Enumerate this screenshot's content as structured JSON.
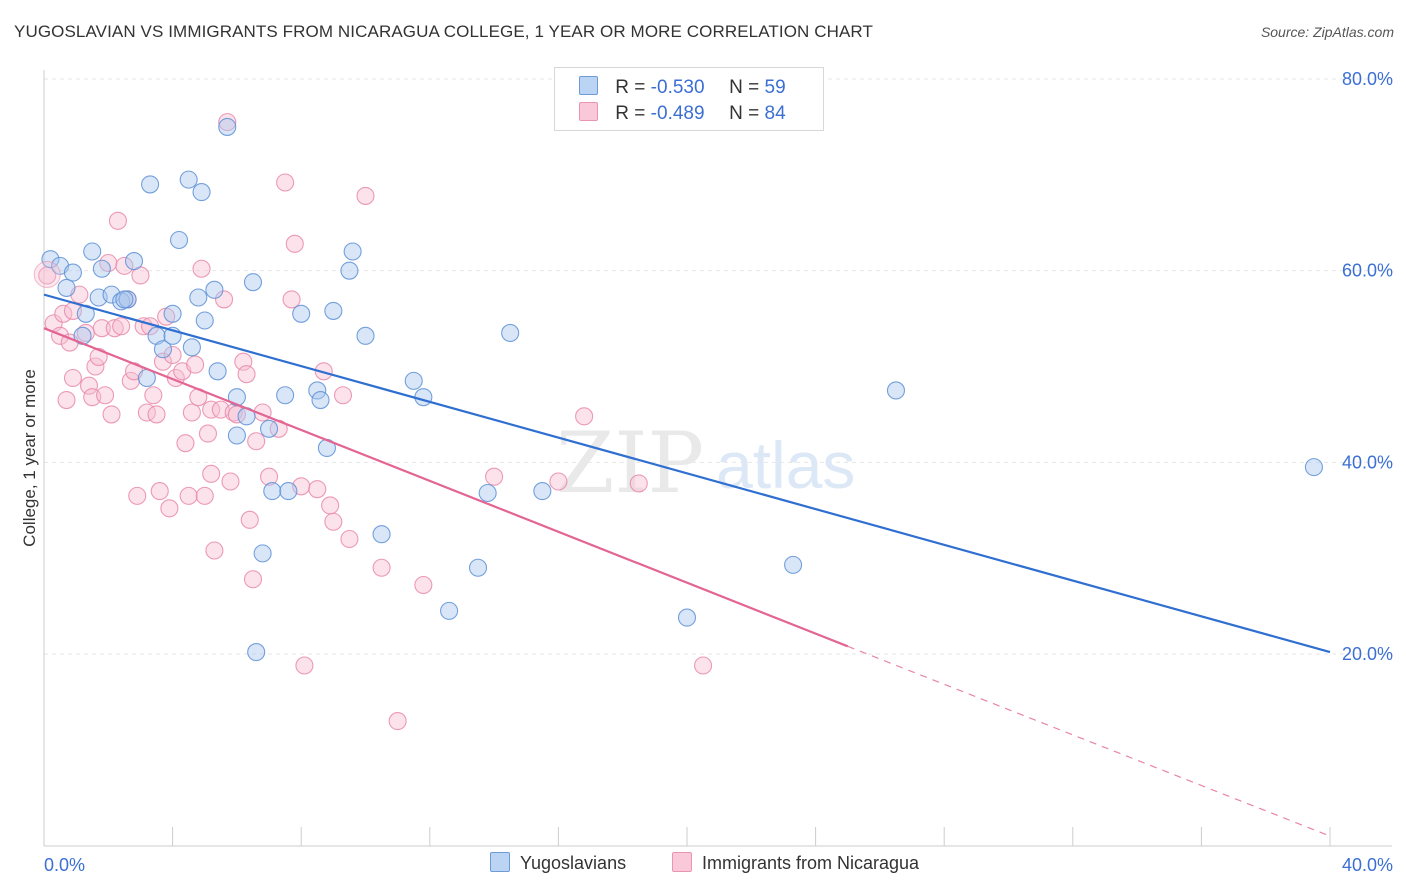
{
  "title": "YUGOSLAVIAN VS IMMIGRANTS FROM NICARAGUA COLLEGE, 1 YEAR OR MORE CORRELATION CHART",
  "source": "Source: ZipAtlas.com",
  "watermark": {
    "zip": "ZIP",
    "atlas": "atlas"
  },
  "legend": {
    "r_label": "R =",
    "n_label": "N =",
    "items": [
      {
        "r": "-0.530",
        "n": "59"
      },
      {
        "r": "-0.489",
        "n": "84"
      }
    ]
  },
  "colors": {
    "blue_fill": "#a9c8f0",
    "blue_stroke": "#5e90d6",
    "blue_line": "#2f6fd1",
    "pink_fill": "#f7bfd2",
    "pink_stroke": "#e98aaa",
    "pink_line": "#e36593",
    "tick_label": "#3b6fd4",
    "grid": "#e6e6e6"
  },
  "chart_data": {
    "type": "scatter",
    "title": "YUGOSLAVIAN VS IMMIGRANTS FROM NICARAGUA COLLEGE, 1 YEAR OR MORE CORRELATION CHART",
    "xlabel": "",
    "ylabel": "College, 1 year or more",
    "xlim": [
      0,
      40
    ],
    "ylim": [
      2.5,
      83
    ],
    "x_tick_labels": [
      {
        "value": 0,
        "label": "0.0%"
      },
      {
        "value": 40,
        "label": "40.0%"
      }
    ],
    "y_tick_labels": [
      {
        "value": 20,
        "label": "20.0%"
      },
      {
        "value": 40,
        "label": "40.0%"
      },
      {
        "value": 60,
        "label": "60.0%"
      },
      {
        "value": 80,
        "label": "80.0%"
      }
    ],
    "grid": true,
    "legend_position": "top-center",
    "series": [
      {
        "name": "Yugoslavians",
        "color": "#a9c8f0",
        "r": -0.53,
        "n": 59,
        "trend": {
          "x": [
            0,
            40
          ],
          "y": [
            57.5,
            20.2
          ]
        },
        "points": [
          [
            0.2,
            61.2
          ],
          [
            0.5,
            60.5
          ],
          [
            0.9,
            59.8
          ],
          [
            0.7,
            58.2
          ],
          [
            1.3,
            55.5
          ],
          [
            1.2,
            53.2
          ],
          [
            1.5,
            62.0
          ],
          [
            1.8,
            60.2
          ],
          [
            1.7,
            57.2
          ],
          [
            2.1,
            57.5
          ],
          [
            2.4,
            56.8
          ],
          [
            2.6,
            57.0
          ],
          [
            2.8,
            61.0
          ],
          [
            3.2,
            48.8
          ],
          [
            3.3,
            69.0
          ],
          [
            3.5,
            53.2
          ],
          [
            3.7,
            51.8
          ],
          [
            4.0,
            53.2
          ],
          [
            4.0,
            55.5
          ],
          [
            4.2,
            63.2
          ],
          [
            4.5,
            69.5
          ],
          [
            4.8,
            57.2
          ],
          [
            4.9,
            68.2
          ],
          [
            5.0,
            54.8
          ],
          [
            5.3,
            58.0
          ],
          [
            5.4,
            49.5
          ],
          [
            5.7,
            75.0
          ],
          [
            6.0,
            46.8
          ],
          [
            6.0,
            42.8
          ],
          [
            6.3,
            44.8
          ],
          [
            6.5,
            58.8
          ],
          [
            6.6,
            20.2
          ],
          [
            6.8,
            30.5
          ],
          [
            7.0,
            43.5
          ],
          [
            7.1,
            37.0
          ],
          [
            7.5,
            47.0
          ],
          [
            7.6,
            37.0
          ],
          [
            8.0,
            55.5
          ],
          [
            8.5,
            47.5
          ],
          [
            8.6,
            46.5
          ],
          [
            8.8,
            41.5
          ],
          [
            9.0,
            55.8
          ],
          [
            9.5,
            60.0
          ],
          [
            9.6,
            62.0
          ],
          [
            10.0,
            53.2
          ],
          [
            10.5,
            32.5
          ],
          [
            11.5,
            48.5
          ],
          [
            11.8,
            46.8
          ],
          [
            12.6,
            24.5
          ],
          [
            13.5,
            29.0
          ],
          [
            13.8,
            36.8
          ],
          [
            14.5,
            53.5
          ],
          [
            15.5,
            37.0
          ],
          [
            20.0,
            23.8
          ],
          [
            23.3,
            29.3
          ],
          [
            26.5,
            47.5
          ],
          [
            39.5,
            39.5
          ],
          [
            2.5,
            57.0
          ],
          [
            4.6,
            52.0
          ]
        ]
      },
      {
        "name": "Immigrants from Nicaragua",
        "color": "#f7bfd2",
        "r": -0.489,
        "n": 84,
        "trend": {
          "x": [
            0,
            25
          ],
          "y": [
            54.0,
            20.8
          ]
        },
        "trend_dashed": {
          "x": [
            25,
            40
          ],
          "y": [
            20.8,
            1.0
          ]
        },
        "points": [
          [
            0.1,
            59.5
          ],
          [
            0.3,
            54.5
          ],
          [
            0.5,
            53.2
          ],
          [
            0.6,
            55.5
          ],
          [
            0.7,
            46.5
          ],
          [
            0.8,
            52.5
          ],
          [
            0.9,
            55.8
          ],
          [
            0.9,
            48.8
          ],
          [
            1.1,
            57.5
          ],
          [
            1.3,
            53.5
          ],
          [
            1.4,
            48.0
          ],
          [
            1.5,
            46.8
          ],
          [
            1.6,
            50.0
          ],
          [
            1.7,
            51.0
          ],
          [
            1.8,
            54.0
          ],
          [
            1.9,
            47.0
          ],
          [
            2.0,
            60.8
          ],
          [
            2.1,
            45.0
          ],
          [
            2.2,
            54.0
          ],
          [
            2.3,
            65.2
          ],
          [
            2.4,
            54.2
          ],
          [
            2.5,
            60.5
          ],
          [
            2.6,
            57.0
          ],
          [
            2.7,
            48.5
          ],
          [
            2.8,
            49.5
          ],
          [
            2.9,
            36.5
          ],
          [
            3.0,
            59.5
          ],
          [
            3.1,
            54.2
          ],
          [
            3.2,
            45.2
          ],
          [
            3.3,
            54.2
          ],
          [
            3.5,
            45.0
          ],
          [
            3.6,
            37.0
          ],
          [
            3.7,
            50.5
          ],
          [
            3.8,
            55.2
          ],
          [
            3.9,
            35.2
          ],
          [
            4.0,
            51.2
          ],
          [
            4.1,
            48.8
          ],
          [
            4.3,
            49.5
          ],
          [
            4.4,
            42.0
          ],
          [
            4.5,
            36.5
          ],
          [
            4.6,
            45.2
          ],
          [
            4.7,
            50.2
          ],
          [
            4.8,
            46.8
          ],
          [
            4.9,
            60.2
          ],
          [
            5.0,
            36.5
          ],
          [
            5.1,
            43.0
          ],
          [
            5.2,
            45.5
          ],
          [
            5.3,
            30.8
          ],
          [
            5.5,
            45.5
          ],
          [
            5.6,
            57.0
          ],
          [
            5.7,
            75.5
          ],
          [
            5.8,
            38.0
          ],
          [
            5.9,
            45.2
          ],
          [
            6.0,
            45.0
          ],
          [
            6.2,
            50.5
          ],
          [
            6.3,
            49.2
          ],
          [
            6.4,
            34.0
          ],
          [
            6.5,
            27.8
          ],
          [
            6.6,
            42.2
          ],
          [
            6.8,
            45.2
          ],
          [
            7.0,
            38.5
          ],
          [
            7.3,
            43.5
          ],
          [
            7.5,
            69.2
          ],
          [
            7.7,
            57.0
          ],
          [
            7.8,
            62.8
          ],
          [
            8.0,
            37.5
          ],
          [
            8.1,
            18.8
          ],
          [
            8.5,
            37.2
          ],
          [
            8.7,
            49.5
          ],
          [
            8.9,
            35.5
          ],
          [
            9.0,
            33.8
          ],
          [
            9.5,
            32.0
          ],
          [
            10.0,
            67.8
          ],
          [
            10.5,
            29.0
          ],
          [
            11.0,
            13.0
          ],
          [
            11.8,
            27.2
          ],
          [
            14.0,
            38.5
          ],
          [
            16.0,
            38.0
          ],
          [
            16.8,
            44.8
          ],
          [
            18.5,
            37.8
          ],
          [
            20.5,
            18.8
          ],
          [
            9.3,
            47.0
          ],
          [
            5.2,
            38.8
          ],
          [
            3.4,
            47.0
          ]
        ]
      }
    ]
  },
  "bottom_legend": [
    "Yugoslavians",
    "Immigrants from Nicaragua"
  ]
}
